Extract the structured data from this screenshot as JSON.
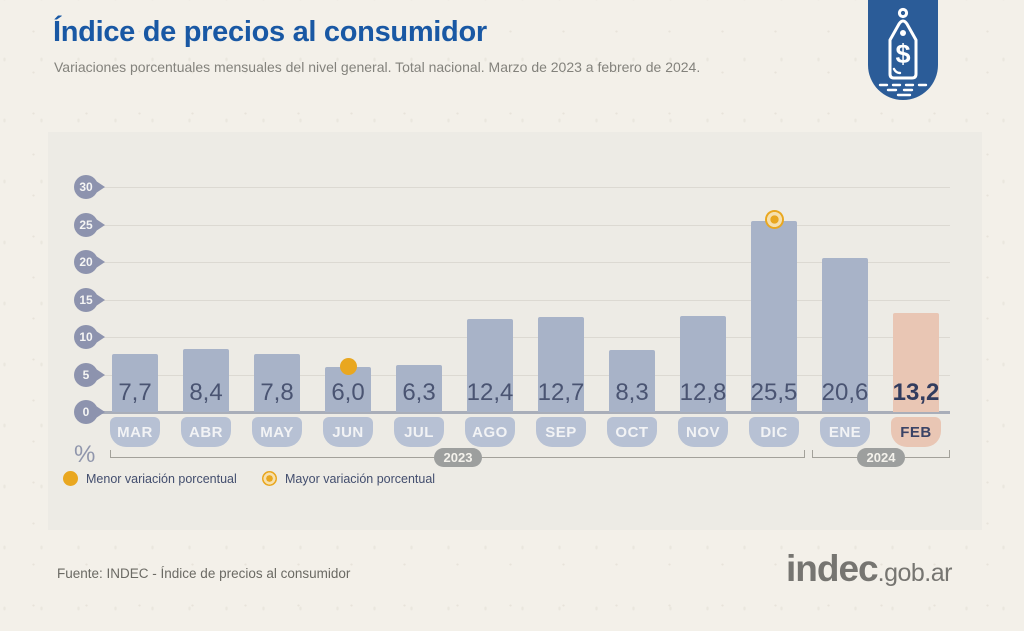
{
  "header": {
    "title": "Índice de precios al consumidor",
    "subtitle": "Variaciones porcentuales mensuales del nivel general. Total nacional. Marzo de 2023 a febrero de 2024."
  },
  "chart_data": {
    "type": "bar",
    "title": "Índice de precios al consumidor",
    "categories": [
      "MAR",
      "ABR",
      "MAY",
      "JUN",
      "JUL",
      "AGO",
      "SEP",
      "OCT",
      "NOV",
      "DIC",
      "ENE",
      "FEB"
    ],
    "values": [
      7.7,
      8.4,
      7.8,
      6.0,
      6.3,
      12.4,
      12.7,
      8.3,
      12.8,
      25.5,
      20.6,
      13.2
    ],
    "value_labels": [
      "7,7",
      "8,4",
      "7,8",
      "6,0",
      "6,3",
      "12,4",
      "12,7",
      "8,3",
      "12,8",
      "25,5",
      "20,6",
      "13,2"
    ],
    "ylabel": "%",
    "yticks": [
      0,
      5,
      10,
      15,
      20,
      25,
      30
    ],
    "ylim": [
      0,
      32
    ],
    "grid": true,
    "highlight_month": "FEB",
    "markers": {
      "min": {
        "month": "JUN",
        "value": 6.0
      },
      "max": {
        "month": "DIC",
        "value": 25.5
      }
    },
    "year_groups": [
      {
        "label": "2023",
        "from": "MAR",
        "to": "DIC"
      },
      {
        "label": "2024",
        "from": "ENE",
        "to": "FEB"
      }
    ]
  },
  "legend": {
    "min": {
      "label": "Menor variación porcentual"
    },
    "max": {
      "label": "Mayor variación porcentual"
    }
  },
  "footer": {
    "source": "Fuente: INDEC - Índice de precios al consumidor",
    "logo_text": "indec",
    "logo_suffix": ".gob.ar"
  },
  "colors": {
    "title_blue": "#1958a4",
    "bar": "#a8b3c8",
    "bar_highlight": "#e9c6b4",
    "month_badge": "#b7c1d4",
    "axis_badge": "#8d93ae",
    "marker_yellow": "#e9a720",
    "badge_blue": "#2b5c98",
    "background": "#f3f0e9",
    "panel": "#edebe5"
  }
}
